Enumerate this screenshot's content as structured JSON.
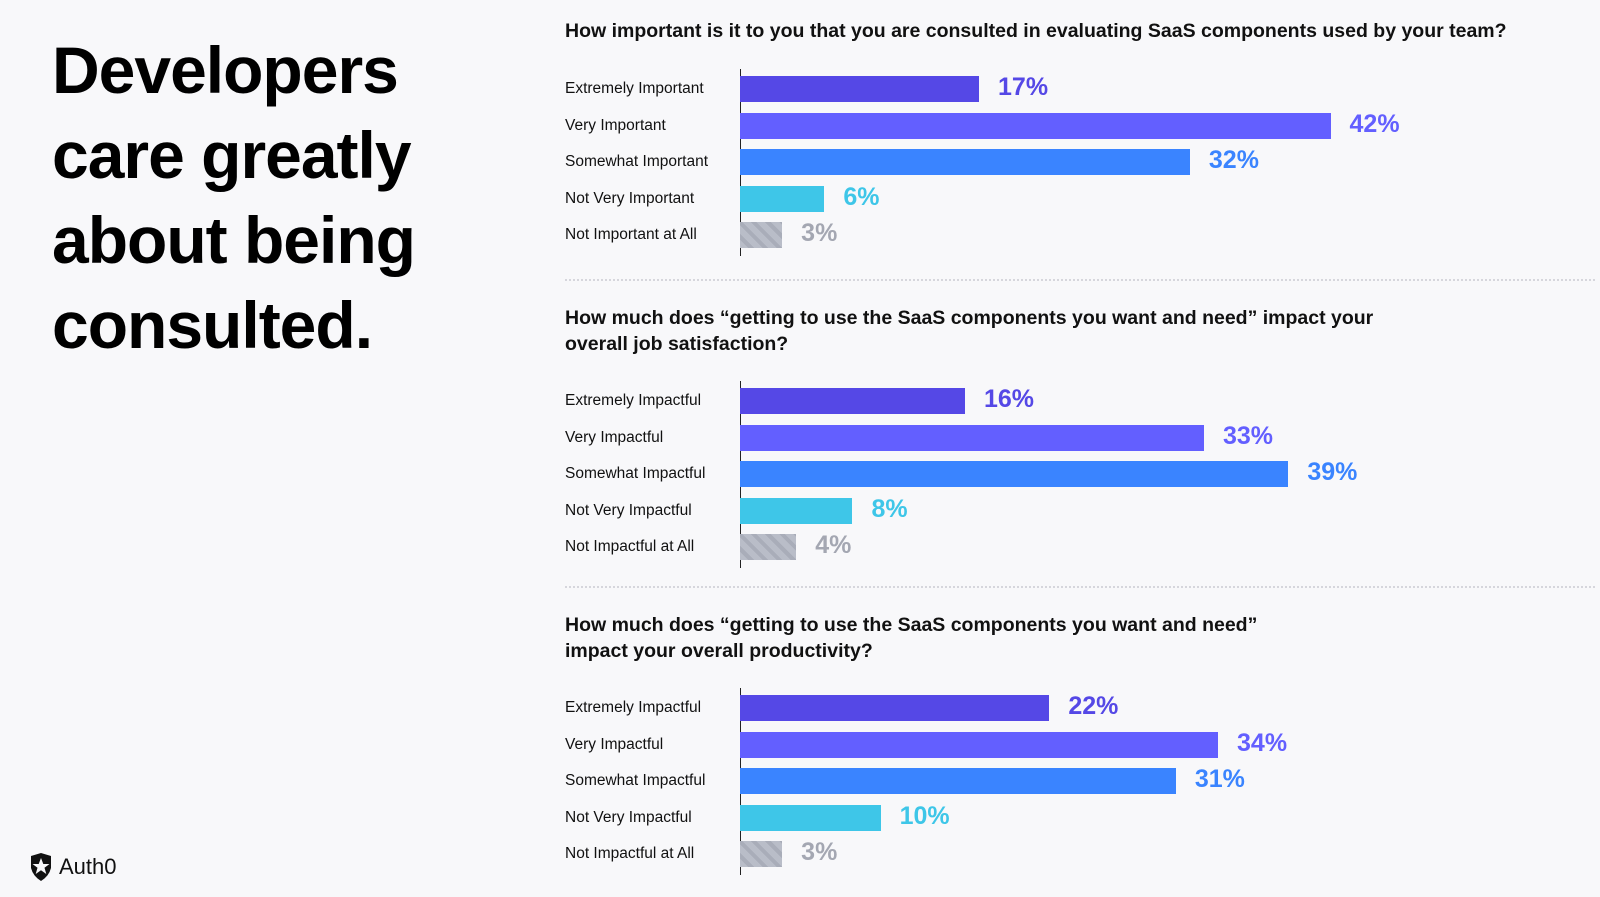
{
  "headline": "Developers care greatly about being consulted.",
  "logo": {
    "text": "Auth0",
    "icon": "auth0-shield-star-icon"
  },
  "colors": {
    "extremely": "#5548e6",
    "very": "#635fff",
    "somewhat": "#3a84ff",
    "not_very": "#3ec6e8",
    "not_at_all": "#b9bdc8",
    "not_at_all_label": "#a4a7b2"
  },
  "chart_data": [
    {
      "type": "bar",
      "orientation": "horizontal",
      "title": "How important is it to you that you are consulted in evaluating SaaS components used by your team?",
      "categories": [
        "Extremely Important",
        "Very Important",
        "Somewhat Important",
        "Not Very Important",
        "Not Important at All"
      ],
      "values": [
        17,
        42,
        32,
        6,
        3
      ],
      "labels": [
        "17%",
        "42%",
        "32%",
        "6%",
        "3%"
      ]
    },
    {
      "type": "bar",
      "orientation": "horizontal",
      "title": "How much does “getting to use the SaaS components you want and need” impact your overall job satisfaction?",
      "categories": [
        "Extremely Impactful",
        "Very Impactful",
        "Somewhat Impactful",
        "Not Very Impactful",
        "Not Impactful at All"
      ],
      "values": [
        16,
        33,
        39,
        8,
        4
      ],
      "labels": [
        "16%",
        "33%",
        "39%",
        "8%",
        "4%"
      ]
    },
    {
      "type": "bar",
      "orientation": "horizontal",
      "title": "How much does “getting to use the SaaS components you want and need” impact your overall productivity?",
      "categories": [
        "Extremely Impactful",
        "Very Impactful",
        "Somewhat Impactful",
        "Not Very Impactful",
        "Not Impactful at All"
      ],
      "values": [
        22,
        34,
        31,
        10,
        3
      ],
      "labels": [
        "22%",
        "34%",
        "31%",
        "10%",
        "3%"
      ]
    }
  ]
}
